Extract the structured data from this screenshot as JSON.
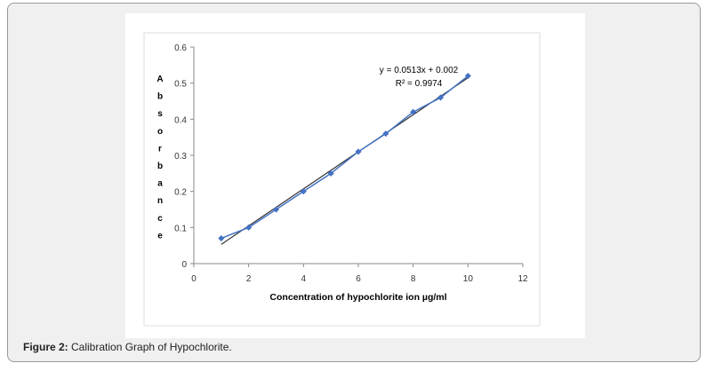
{
  "caption": {
    "label": "Figure 2:",
    "text": " Calibration Graph of Hypochlorite."
  },
  "chart_data": {
    "type": "scatter",
    "xlabel": "Concentration of hypochlorite ion µg/ml",
    "ylabel": "Absorbance",
    "xlim": [
      0,
      12
    ],
    "ylim": [
      0,
      0.6
    ],
    "xticks": [
      0,
      2,
      4,
      6,
      8,
      10,
      12
    ],
    "yticks": [
      0,
      0.1,
      0.2,
      0.3,
      0.4,
      0.5,
      0.6
    ],
    "x": [
      1,
      2,
      3,
      4,
      5,
      6,
      7,
      8,
      9,
      10
    ],
    "y": [
      0.07,
      0.1,
      0.15,
      0.2,
      0.25,
      0.31,
      0.36,
      0.42,
      0.46,
      0.52
    ],
    "trendline": {
      "slope": 0.0513,
      "intercept": 0.002,
      "equation": "y = 0.0513x + 0.002",
      "r2": "R² = 0.9974"
    },
    "grid": false,
    "colors": {
      "series": "#4472c4",
      "trendline": "#333333"
    }
  }
}
